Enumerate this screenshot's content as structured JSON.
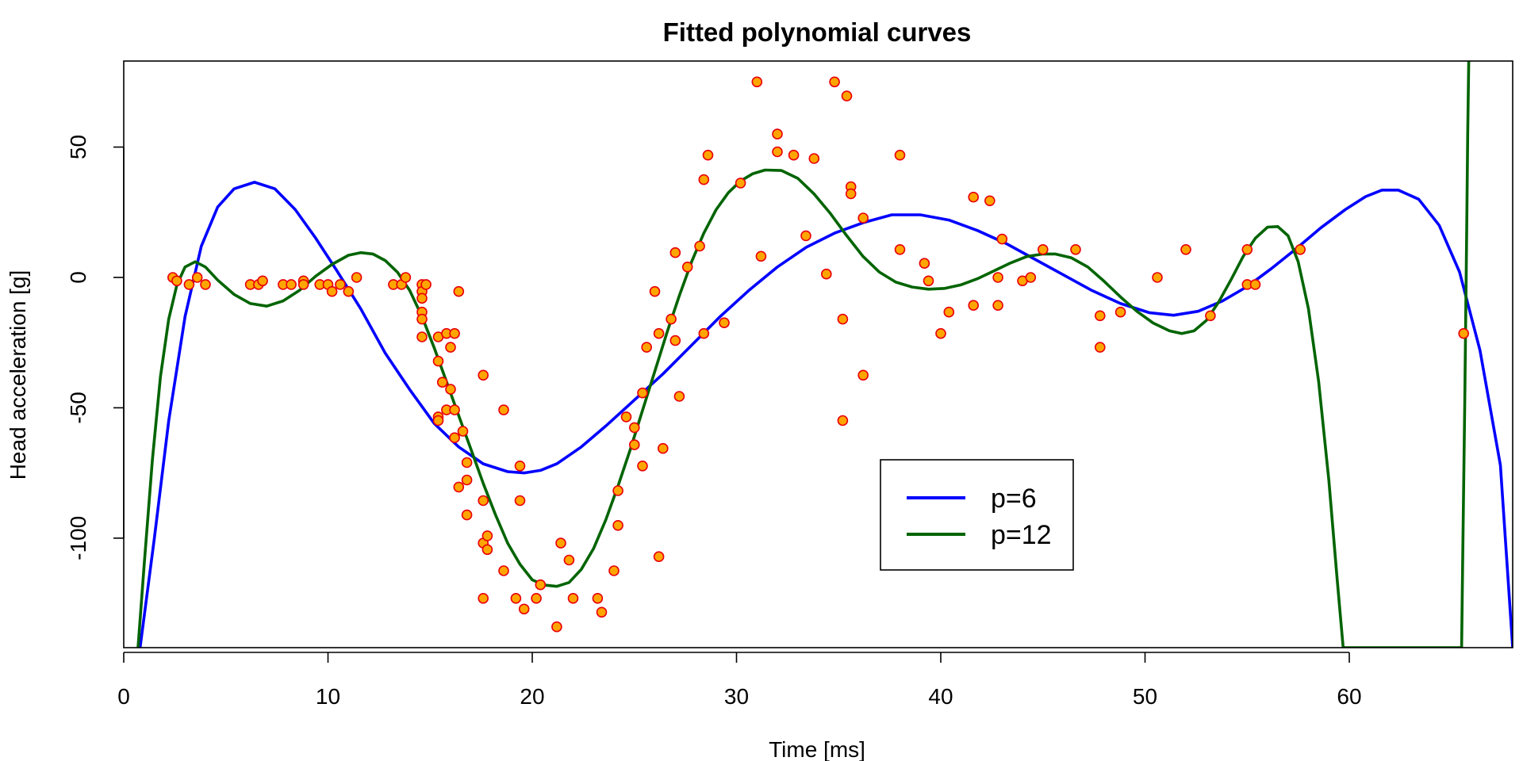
{
  "chart_data": {
    "type": "scatter",
    "title": "Fitted polynomial curves",
    "xlabel": "Time [ms]",
    "ylabel": "Head acceleration [g]",
    "xlim": [
      0,
      68
    ],
    "ylim": [
      -142,
      83
    ],
    "x_ticks": [
      0,
      10,
      20,
      30,
      40,
      50,
      60
    ],
    "y_ticks": [
      -100,
      -50,
      0,
      50
    ],
    "grid": false,
    "legend_position": "bottom-center",
    "point_style": {
      "fill": "#ffa500",
      "stroke": "#e8000b"
    },
    "points": [
      [
        2.4,
        0
      ],
      [
        2.6,
        -1.3
      ],
      [
        3.2,
        -2.7
      ],
      [
        3.6,
        0
      ],
      [
        4.0,
        -2.7
      ],
      [
        6.2,
        -2.7
      ],
      [
        6.6,
        -2.7
      ],
      [
        6.8,
        -1.3
      ],
      [
        7.8,
        -2.7
      ],
      [
        8.2,
        -2.7
      ],
      [
        8.8,
        -1.3
      ],
      [
        8.8,
        -2.7
      ],
      [
        9.6,
        -2.7
      ],
      [
        10.0,
        -2.7
      ],
      [
        10.2,
        -5.4
      ],
      [
        10.6,
        -2.7
      ],
      [
        11.0,
        -5.4
      ],
      [
        11.4,
        0
      ],
      [
        13.2,
        -2.7
      ],
      [
        13.6,
        -2.7
      ],
      [
        13.8,
        0
      ],
      [
        14.6,
        -13.3
      ],
      [
        14.6,
        -2.7
      ],
      [
        14.6,
        -5.4
      ],
      [
        14.6,
        -8.0
      ],
      [
        14.6,
        -16.0
      ],
      [
        14.6,
        -22.8
      ],
      [
        14.8,
        -2.7
      ],
      [
        15.4,
        -32.1
      ],
      [
        15.4,
        -53.5
      ],
      [
        15.4,
        -54.9
      ],
      [
        15.4,
        -22.8
      ],
      [
        15.6,
        -40.2
      ],
      [
        15.8,
        -21.5
      ],
      [
        15.8,
        -50.8
      ],
      [
        16.0,
        -42.9
      ],
      [
        16.0,
        -26.8
      ],
      [
        16.2,
        -21.5
      ],
      [
        16.2,
        -50.8
      ],
      [
        16.2,
        -61.5
      ],
      [
        16.4,
        -5.4
      ],
      [
        16.4,
        -80.4
      ],
      [
        16.6,
        -59.0
      ],
      [
        16.8,
        -71.0
      ],
      [
        16.8,
        -91.1
      ],
      [
        16.8,
        -77.7
      ],
      [
        17.6,
        -37.5
      ],
      [
        17.6,
        -85.6
      ],
      [
        17.6,
        -123.1
      ],
      [
        17.6,
        -101.9
      ],
      [
        17.8,
        -99.1
      ],
      [
        17.8,
        -104.4
      ],
      [
        18.6,
        -112.5
      ],
      [
        18.6,
        -50.8
      ],
      [
        19.2,
        -123.1
      ],
      [
        19.4,
        -85.6
      ],
      [
        19.4,
        -72.3
      ],
      [
        19.6,
        -127.2
      ],
      [
        20.2,
        -123.1
      ],
      [
        20.4,
        -117.9
      ],
      [
        21.2,
        -134.0
      ],
      [
        21.4,
        -101.9
      ],
      [
        21.8,
        -108.4
      ],
      [
        22.0,
        -123.1
      ],
      [
        23.2,
        -123.1
      ],
      [
        23.4,
        -128.4
      ],
      [
        24.0,
        -112.5
      ],
      [
        24.2,
        -95.1
      ],
      [
        24.2,
        -81.8
      ],
      [
        24.6,
        -53.5
      ],
      [
        25.0,
        -64.2
      ],
      [
        25.0,
        -57.6
      ],
      [
        25.4,
        -72.3
      ],
      [
        25.4,
        -44.3
      ],
      [
        25.6,
        -26.8
      ],
      [
        26.0,
        -5.4
      ],
      [
        26.2,
        -21.5
      ],
      [
        26.2,
        -107.1
      ],
      [
        26.4,
        -65.6
      ],
      [
        26.8,
        -16.0
      ],
      [
        27.0,
        9.5
      ],
      [
        27.0,
        -24.2
      ],
      [
        27.2,
        -45.6
      ],
      [
        27.6,
        4.0
      ],
      [
        28.2,
        12.0
      ],
      [
        28.4,
        -21.5
      ],
      [
        28.4,
        37.5
      ],
      [
        28.6,
        46.9
      ],
      [
        29.4,
        -17.4
      ],
      [
        30.2,
        36.2
      ],
      [
        31.0,
        75.0
      ],
      [
        31.2,
        8.1
      ],
      [
        32.0,
        48.2
      ],
      [
        32.0,
        55.0
      ],
      [
        32.8,
        46.9
      ],
      [
        33.4,
        16.0
      ],
      [
        33.8,
        45.6
      ],
      [
        34.4,
        1.3
      ],
      [
        34.8,
        75.0
      ],
      [
        35.2,
        -16.0
      ],
      [
        35.2,
        -54.9
      ],
      [
        35.4,
        69.6
      ],
      [
        35.6,
        34.8
      ],
      [
        35.6,
        32.1
      ],
      [
        36.2,
        22.8
      ],
      [
        36.2,
        -37.5
      ],
      [
        38.0,
        46.9
      ],
      [
        38.0,
        10.7
      ],
      [
        39.2,
        5.4
      ],
      [
        39.4,
        -1.3
      ],
      [
        40.0,
        -21.5
      ],
      [
        40.4,
        -13.3
      ],
      [
        41.6,
        30.8
      ],
      [
        41.6,
        -10.7
      ],
      [
        42.4,
        29.4
      ],
      [
        42.8,
        -10.7
      ],
      [
        42.8,
        0
      ],
      [
        43.0,
        14.7
      ],
      [
        44.0,
        -1.3
      ],
      [
        44.4,
        0
      ],
      [
        45.0,
        10.7
      ],
      [
        46.6,
        10.7
      ],
      [
        47.8,
        -26.8
      ],
      [
        47.8,
        -14.7
      ],
      [
        48.8,
        -13.3
      ],
      [
        50.6,
        0
      ],
      [
        52.0,
        10.7
      ],
      [
        53.2,
        -14.7
      ],
      [
        55.0,
        10.7
      ],
      [
        55.0,
        -2.7
      ],
      [
        55.4,
        -2.7
      ],
      [
        57.6,
        10.7
      ],
      [
        65.6,
        -21.5
      ]
    ],
    "series": [
      {
        "name": "p=6",
        "color": "#0000ff",
        "x": [
          0.8,
          1.5,
          2.2,
          3.0,
          3.8,
          4.6,
          5.4,
          6.4,
          7.4,
          8.4,
          9.4,
          10.4,
          11.6,
          12.8,
          14.0,
          15.2,
          16.4,
          17.6,
          18.8,
          19.6,
          20.4,
          21.2,
          22.4,
          23.6,
          25.0,
          26.4,
          27.8,
          29.2,
          30.6,
          32.0,
          33.4,
          34.8,
          36.2,
          37.6,
          39.0,
          40.4,
          41.8,
          43.2,
          44.6,
          46.0,
          47.4,
          48.8,
          50.2,
          51.4,
          52.6,
          53.8,
          55.0,
          56.2,
          57.4,
          58.6,
          59.8,
          60.8,
          61.6,
          62.4,
          63.4,
          64.4,
          65.4,
          66.4,
          67.4,
          68.0
        ],
        "y": [
          -142,
          -100,
          -55,
          -15,
          12,
          27,
          34,
          36.5,
          34,
          26,
          15,
          3,
          -12,
          -29,
          -43,
          -56,
          -65,
          -71.5,
          -74.5,
          -75,
          -74,
          -71.5,
          -65,
          -57,
          -47,
          -37,
          -26,
          -15,
          -5,
          4,
          11.5,
          17,
          21,
          24,
          24,
          22,
          18,
          13,
          7,
          1,
          -5,
          -10,
          -13.5,
          -14.5,
          -13,
          -9,
          -3.5,
          3.5,
          11,
          19,
          26,
          31,
          33.5,
          33.5,
          30,
          20,
          2,
          -28,
          -72,
          -142
        ]
      },
      {
        "name": "p=12",
        "color": "#006400",
        "x": [
          0.7,
          1.0,
          1.4,
          1.8,
          2.2,
          2.6,
          3.0,
          3.5,
          4.0,
          4.6,
          5.4,
          6.2,
          7.0,
          7.8,
          8.6,
          9.4,
          10.2,
          11.0,
          11.6,
          12.2,
          12.8,
          13.4,
          14.0,
          14.6,
          15.2,
          15.8,
          16.4,
          17.0,
          17.6,
          18.2,
          18.8,
          19.4,
          20.0,
          20.6,
          21.2,
          21.8,
          22.4,
          23.0,
          23.6,
          24.2,
          24.8,
          25.4,
          26.0,
          26.6,
          27.2,
          27.8,
          28.4,
          29.0,
          29.6,
          30.2,
          30.8,
          31.4,
          32.2,
          33.0,
          33.8,
          34.6,
          35.4,
          36.2,
          37.0,
          37.8,
          38.6,
          39.4,
          40.2,
          41.0,
          41.8,
          42.6,
          43.4,
          44.2,
          45.0,
          45.6,
          46.4,
          47.2,
          48.0,
          48.8,
          49.6,
          50.4,
          51.2,
          51.8,
          52.4,
          53.0,
          53.6,
          54.2,
          54.8,
          55.4,
          56.0,
          56.5,
          57.0,
          57.5,
          58.0,
          58.5,
          59.0,
          59.4,
          59.6,
          59.7,
          65.5,
          65.55,
          65.6,
          65.65,
          65.7,
          65.75,
          65.8,
          65.85
        ],
        "y": [
          -142,
          -110,
          -70,
          -38,
          -16,
          -3,
          4,
          6,
          4,
          -1,
          -6.5,
          -10,
          -11,
          -9,
          -5,
          0.5,
          5,
          8.5,
          9.5,
          9,
          6.5,
          2,
          -5,
          -15,
          -27,
          -40,
          -53,
          -66,
          -79,
          -91,
          -102,
          -110,
          -116,
          -118,
          -118.5,
          -117,
          -112,
          -104,
          -93,
          -80,
          -66,
          -51,
          -36,
          -21,
          -7,
          6,
          17,
          26,
          32.5,
          37,
          39.8,
          41.2,
          41,
          38,
          32,
          24.5,
          16,
          8,
          2,
          -1.8,
          -3.7,
          -4.5,
          -4.2,
          -2.8,
          -0.5,
          2.5,
          5.5,
          8,
          9,
          9,
          7.5,
          4,
          -1.5,
          -7.5,
          -13,
          -17.5,
          -20.5,
          -21.5,
          -20.5,
          -16.5,
          -9.5,
          -1,
          8,
          15,
          19.3,
          19.5,
          16,
          6,
          -12,
          -40,
          -78,
          -115,
          -133,
          -142,
          -142,
          -110,
          -80,
          -50,
          -15,
          20,
          55,
          83
        ]
      }
    ]
  }
}
